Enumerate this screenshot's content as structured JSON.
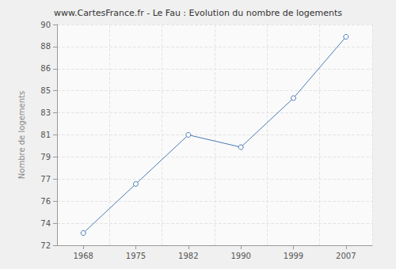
{
  "chart_data": {
    "type": "line",
    "title": "www.CartesFrance.fr - Le Fau : Evolution du nombre de logements",
    "y_label": "Nombre de logements",
    "categories": [
      "1968",
      "1975",
      "1982",
      "1990",
      "1999",
      "2007"
    ],
    "values": [
      73,
      77,
      81,
      80,
      84,
      89
    ],
    "color": "#4a7ab5",
    "marker": "circle",
    "ylim": [
      72,
      90
    ],
    "yticks": [
      72,
      {
        "value": 73.8,
        "label": "74"
      },
      {
        "value": 75.6,
        "label": "76"
      },
      {
        "value": 77.4,
        "label": "77"
      },
      {
        "value": 79.2,
        "label": "79"
      },
      81,
      {
        "value": 82.8,
        "label": "83"
      },
      {
        "value": 84.6,
        "label": "85"
      },
      {
        "value": 86.4,
        "label": "86"
      },
      {
        "value": 88.2,
        "label": "88"
      },
      90
    ],
    "grid": true
  }
}
